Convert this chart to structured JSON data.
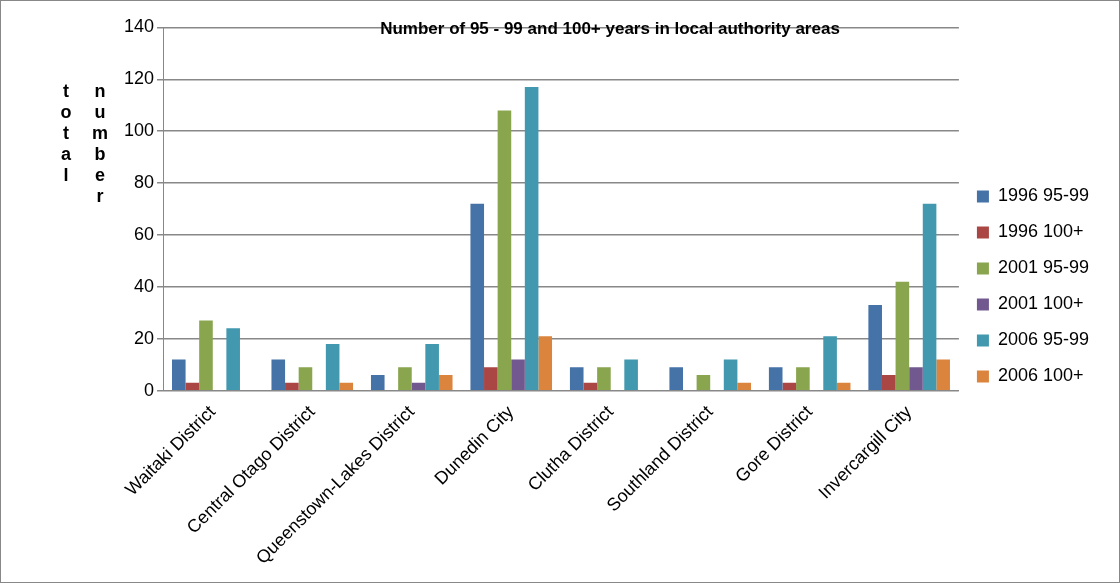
{
  "chart_data": {
    "type": "bar",
    "title": "Number of 95 - 99 and 100+ years in local authority areas",
    "ylabel": "total number",
    "categories": [
      "Waitaki District",
      "Central Otago District",
      "Queenstown-Lakes District",
      "Dunedin City",
      "Clutha District",
      "Southland District",
      "Gore District",
      "Invercargill City"
    ],
    "series": [
      {
        "name": "1996 95-99",
        "color": "#4572a7",
        "values": [
          12,
          12,
          6,
          72,
          9,
          9,
          9,
          33
        ]
      },
      {
        "name": "1996 100+",
        "color": "#aa4643",
        "values": [
          3,
          3,
          0,
          9,
          3,
          0,
          3,
          6
        ]
      },
      {
        "name": "2001 95-99",
        "color": "#89a54e",
        "values": [
          27,
          9,
          9,
          108,
          9,
          6,
          9,
          42
        ]
      },
      {
        "name": "2001 100+",
        "color": "#71588f",
        "values": [
          0,
          0,
          3,
          12,
          0,
          0,
          0,
          9
        ]
      },
      {
        "name": "2006 95-99",
        "color": "#4198af",
        "values": [
          24,
          18,
          18,
          117,
          12,
          12,
          21,
          72
        ]
      },
      {
        "name": "2006 100+",
        "color": "#db843d",
        "values": [
          0,
          3,
          6,
          21,
          0,
          3,
          3,
          12
        ]
      }
    ],
    "ylim": [
      0,
      140
    ],
    "yticks": [
      0,
      20,
      40,
      60,
      80,
      100,
      120,
      140
    ],
    "grid": "y",
    "legend": "right"
  }
}
